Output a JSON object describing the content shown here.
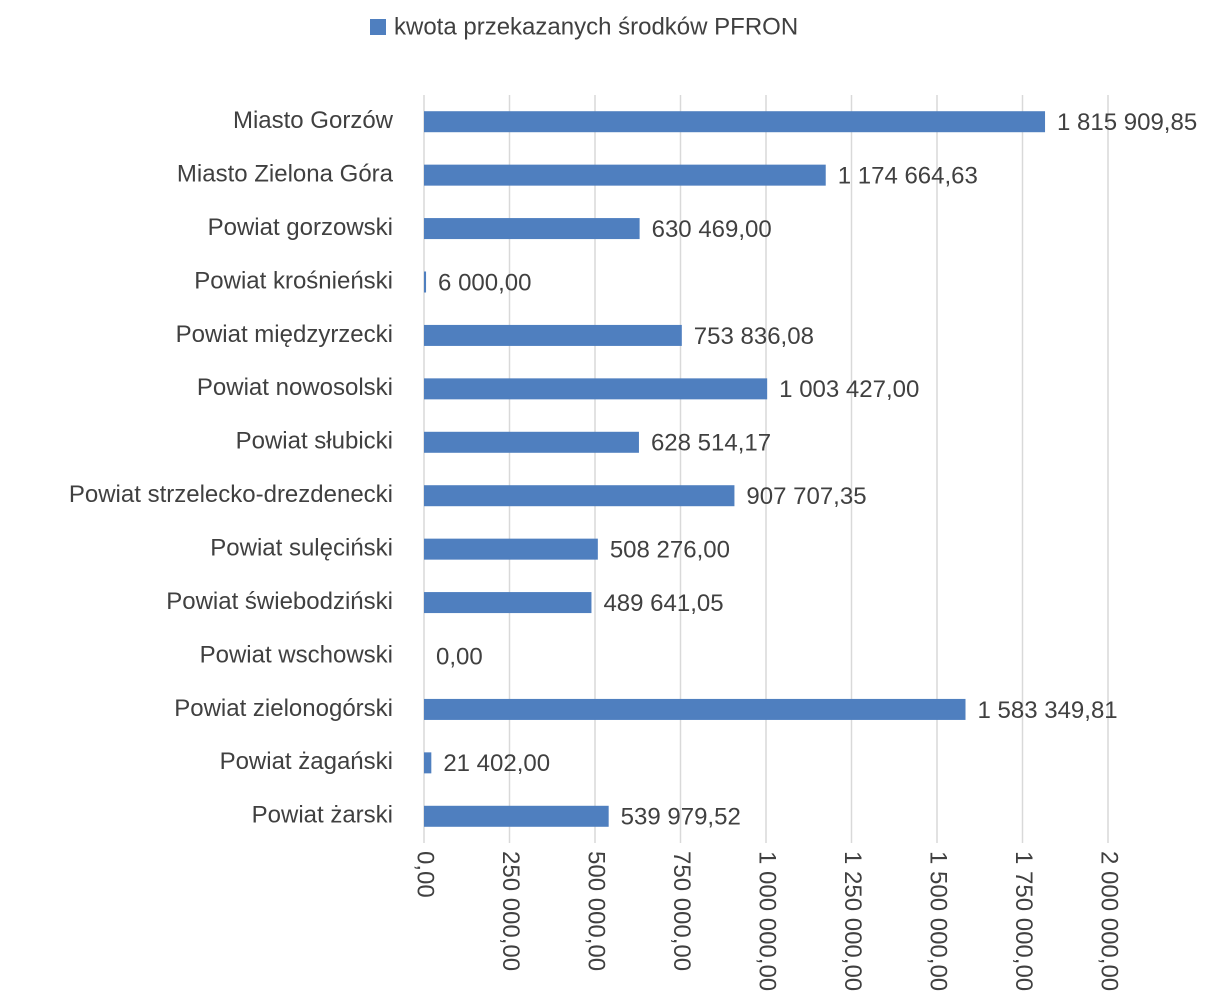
{
  "chart_data": {
    "type": "bar",
    "orientation": "horizontal",
    "categories": [
      "Miasto Gorzów",
      "Miasto Zielona Góra",
      "Powiat gorzowski",
      "Powiat krośnieński",
      "Powiat międzyrzecki",
      "Powiat nowosolski",
      "Powiat słubicki",
      "Powiat strzelecko-drezdenecki",
      "Powiat sulęciński",
      "Powiat świebodziński",
      "Powiat wschowski",
      "Powiat zielonogórski",
      "Powiat żagański",
      "Powiat żarski"
    ],
    "series": [
      {
        "name": "kwota przekazanych środków PFRON",
        "color": "#4f7fbf",
        "values": [
          1815909.85,
          1174664.63,
          630469.0,
          6000.0,
          753836.08,
          1003427.0,
          628514.17,
          907707.35,
          508276.0,
          489641.05,
          0.0,
          1583349.81,
          21402.0,
          539979.52
        ],
        "value_labels": [
          "1 815 909,85",
          "1 174 664,63",
          "630 469,00",
          "6 000,00",
          "753 836,08",
          "1 003 427,00",
          "628 514,17",
          "907 707,35",
          "508 276,00",
          "489 641,05",
          "0,00",
          "1 583 349,81",
          "21 402,00",
          "539 979,52"
        ]
      }
    ],
    "xlim": [
      0,
      2000000
    ],
    "xticks": [
      {
        "value": 0,
        "label": "0,00"
      },
      {
        "value": 250000,
        "label": "250 000,00"
      },
      {
        "value": 500000,
        "label": "500 000,00"
      },
      {
        "value": 750000,
        "label": "750 000,00"
      },
      {
        "value": 1000000,
        "label": "1 000 000,00"
      },
      {
        "value": 1250000,
        "label": "1 250 000,00"
      },
      {
        "value": 1500000,
        "label": "1 500 000,00"
      },
      {
        "value": 1750000,
        "label": "1 750 000,00"
      },
      {
        "value": 2000000,
        "label": "2 000 000,00"
      }
    ],
    "grid": true,
    "legend": "top"
  }
}
